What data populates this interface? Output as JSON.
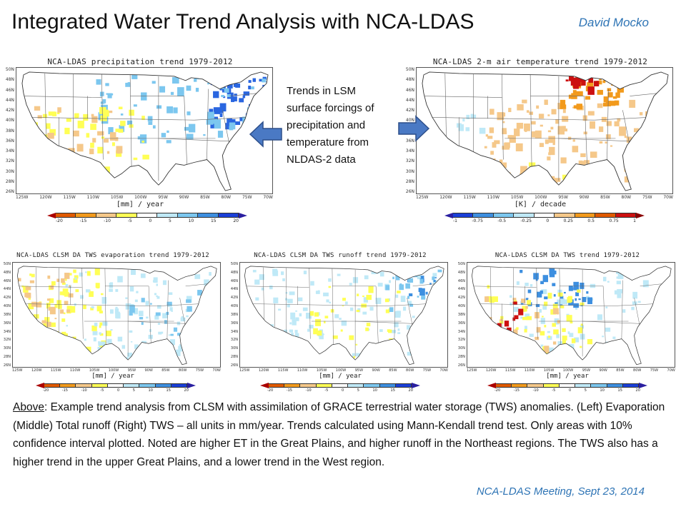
{
  "slide": {
    "title": "Integrated Water Trend Analysis with NCA-LDAS",
    "author": "David Mocko",
    "footer": "NCA-LDAS Meeting, Sept 23, 2014"
  },
  "note": {
    "text": "Trends in LSM surface forcings of precipitation and temperature from NLDAS-2 data"
  },
  "caption": {
    "lead": "Above",
    "text": ": Example trend analysis from CLSM with assimilation of GRACE terrestrial water storage (TWS) anomalies.  (Left) Evaporation (Middle) Total runoff (Right) TWS – all units in mm/year.  Trends calculated using Mann-Kendall trend test.  Only areas with 10% confidence interval plotted.  Noted are higher ET in the Great Plains, and higher runoff in the Northeast regions.  The TWS also has a higher trend in the upper Great Plains, and a lower trend in the West region."
  },
  "axes": {
    "lat_ticks": [
      "50N",
      "48N",
      "46N",
      "44N",
      "42N",
      "40N",
      "38N",
      "36N",
      "34N",
      "32N",
      "30N",
      "28N",
      "26N"
    ],
    "lon_ticks": [
      "125W",
      "120W",
      "115W",
      "110W",
      "105W",
      "100W",
      "95W",
      "90W",
      "85W",
      "80W",
      "75W",
      "70W"
    ]
  },
  "colors": {
    "precip_scale": [
      "#aa0000",
      "#e05a00",
      "#f29a1c",
      "#f5c88a",
      "#ffff55",
      "#ffffff",
      "#bfe9f7",
      "#7cc7ef",
      "#3d8fe0",
      "#1a3fd8",
      "#2a1fa0"
    ],
    "temp_scale": [
      "#2a1fa0",
      "#1a3fd8",
      "#3d8fe0",
      "#7cc7ef",
      "#bfe9f7",
      "#ffffff",
      "#f5c88a",
      "#f29a1c",
      "#e05a00",
      "#cc1010",
      "#8a0000"
    ]
  },
  "panels": [
    {
      "key": "precip",
      "title": "NCA-LDAS precipitation trend 1979-2012",
      "unit": "[mm] / year",
      "ticks": [
        "-20",
        "-15",
        "-10",
        "-5",
        "0",
        "5",
        "10",
        "15",
        "20"
      ],
      "scale": "precip"
    },
    {
      "key": "temp",
      "title": "NCA-LDAS 2-m air temperature trend 1979-2012",
      "unit": "[K] / decade",
      "ticks": [
        "-1",
        "-0.75",
        "-0.5",
        "-0.25",
        "0",
        "0.25",
        "0.5",
        "0.75",
        "1"
      ],
      "scale": "temp"
    },
    {
      "key": "evap",
      "title": "NCA-LDAS CLSM DA TWS evaporation trend 1979-2012",
      "unit": "[mm] / year",
      "ticks": [
        "-20",
        "-15",
        "-10",
        "-5",
        "0",
        "5",
        "10",
        "15",
        "20"
      ],
      "scale": "precip"
    },
    {
      "key": "runoff",
      "title": "NCA-LDAS CLSM DA TWS runoff trend 1979-2012",
      "unit": "[mm] / year",
      "ticks": [
        "-20",
        "-15",
        "-10",
        "-5",
        "0",
        "5",
        "10",
        "15",
        "20"
      ],
      "scale": "precip"
    },
    {
      "key": "tws",
      "title": "NCA-LDAS CLSM DA TWS trend 1979-2012",
      "unit": "[mm] / year",
      "ticks": [
        "-20",
        "-15",
        "-10",
        "-5",
        "0",
        "5",
        "10",
        "15",
        "20"
      ],
      "scale": "precip"
    }
  ]
}
